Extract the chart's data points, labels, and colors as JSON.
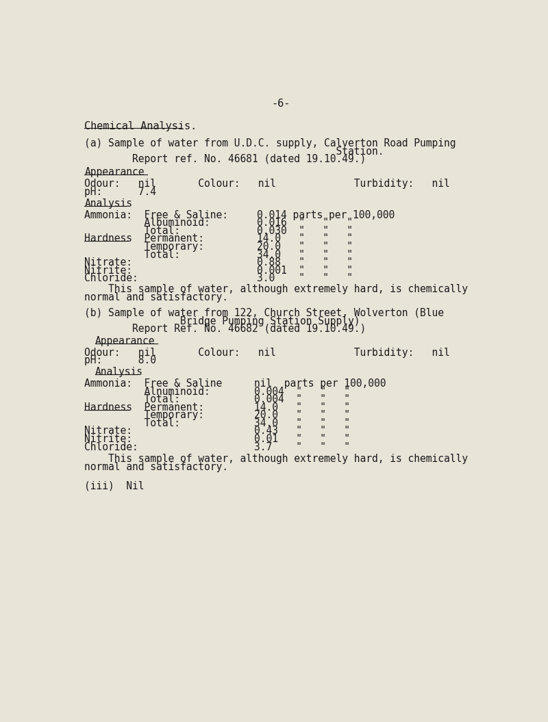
{
  "bg_color": "#e8e4d8",
  "text_color": "#1a1a1a",
  "page_number": "-6-",
  "title": "Chemical Analysis.",
  "sec_a_h1": "(a) Sample of water from U.D.C. supply, Calverton Road Pumping",
  "sec_a_h2": "                                          Station.",
  "sec_a_report": "        Report ref. No. 46681 (dated 19.10.49.)",
  "sec_b_h1": "(b) Sample of water from 122, Church Street, Wolverton (Blue",
  "sec_b_h2": "                Bridge Pumping Station Supply)",
  "sec_b_report": "        Report Ref. No. 46682 (dated 19.10.49.)",
  "footer": "(iii)  Nil"
}
